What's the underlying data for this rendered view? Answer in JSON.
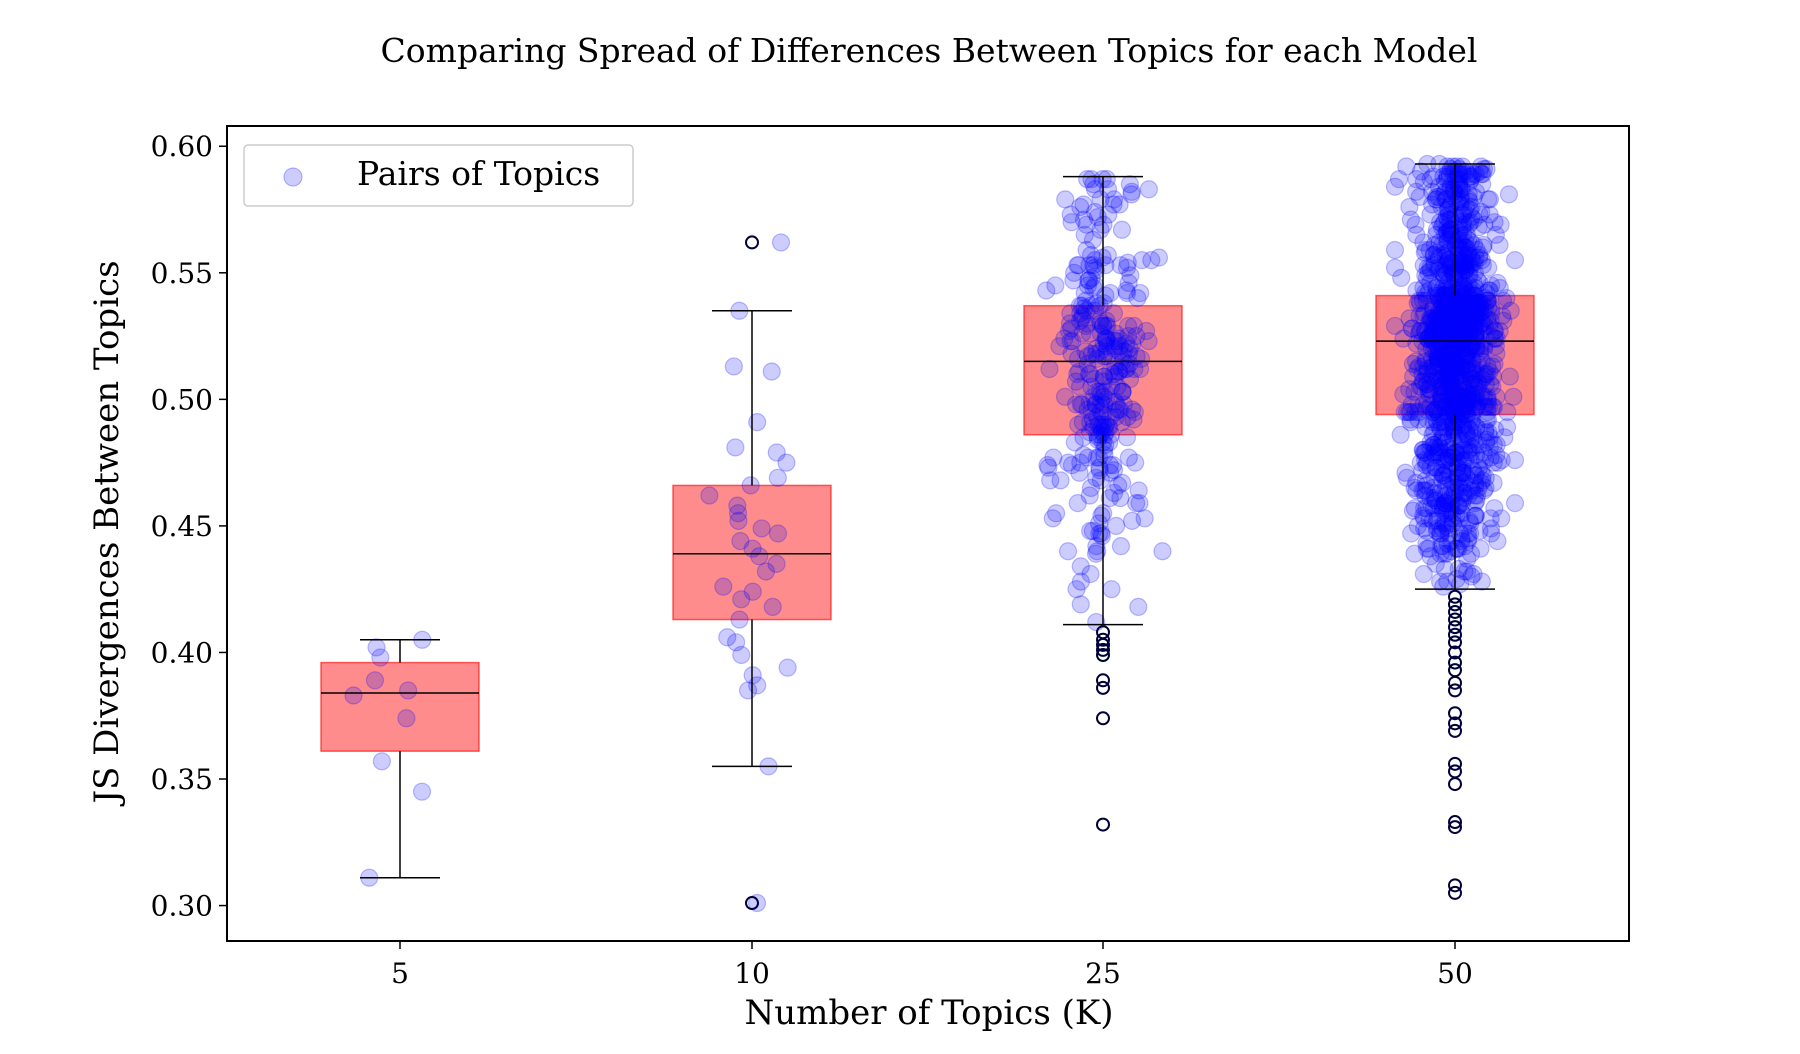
{
  "chart_data": {
    "type": "box",
    "title": "Comparing Spread of Differences Between Topics for each Model",
    "xlabel": "Number of Topics (K)",
    "ylabel": "JS Divergences Between Topics",
    "categories": [
      "5",
      "10",
      "25",
      "50"
    ],
    "ylim": [
      0.286,
      0.608
    ],
    "yticks": [
      "0.30",
      "0.35",
      "0.40",
      "0.45",
      "0.50",
      "0.55",
      "0.60"
    ],
    "legend": {
      "label": "Pairs of Topics",
      "placement": "top-left"
    },
    "colors": {
      "points": "#0000ff",
      "box_fill": "#ff0000",
      "lines": "#000000",
      "outlier_edge": "#00003a"
    },
    "boxes": [
      {
        "category": "5",
        "whisker_low": 0.311,
        "q1": 0.361,
        "median": 0.384,
        "q3": 0.396,
        "whisker_high": 0.405,
        "outliers": [],
        "points": [
          0.405,
          0.402,
          0.398,
          0.389,
          0.385,
          0.383,
          0.374,
          0.357,
          0.345,
          0.311
        ]
      },
      {
        "category": "10",
        "whisker_low": 0.355,
        "q1": 0.413,
        "median": 0.439,
        "q3": 0.466,
        "whisker_high": 0.535,
        "outliers": [
          0.562,
          0.301
        ],
        "points": [
          0.562,
          0.535,
          0.513,
          0.511,
          0.491,
          0.481,
          0.479,
          0.475,
          0.469,
          0.466,
          0.462,
          0.458,
          0.455,
          0.452,
          0.449,
          0.447,
          0.444,
          0.441,
          0.438,
          0.435,
          0.432,
          0.426,
          0.424,
          0.421,
          0.418,
          0.413,
          0.406,
          0.404,
          0.399,
          0.394,
          0.391,
          0.387,
          0.385,
          0.355,
          0.301
        ]
      },
      {
        "category": "25",
        "whisker_low": 0.411,
        "q1": 0.486,
        "median": 0.515,
        "q3": 0.537,
        "whisker_high": 0.588,
        "outliers": [
          0.408,
          0.405,
          0.403,
          0.401,
          0.399,
          0.389,
          0.386,
          0.374,
          0.332
        ],
        "points": []
      },
      {
        "category": "50",
        "whisker_low": 0.425,
        "q1": 0.494,
        "median": 0.523,
        "q3": 0.541,
        "whisker_high": 0.593,
        "outliers": [
          0.422,
          0.419,
          0.416,
          0.413,
          0.41,
          0.407,
          0.404,
          0.4,
          0.396,
          0.393,
          0.388,
          0.385,
          0.376,
          0.372,
          0.369,
          0.356,
          0.353,
          0.348,
          0.333,
          0.331,
          0.308,
          0.305
        ],
        "points": []
      }
    ]
  }
}
